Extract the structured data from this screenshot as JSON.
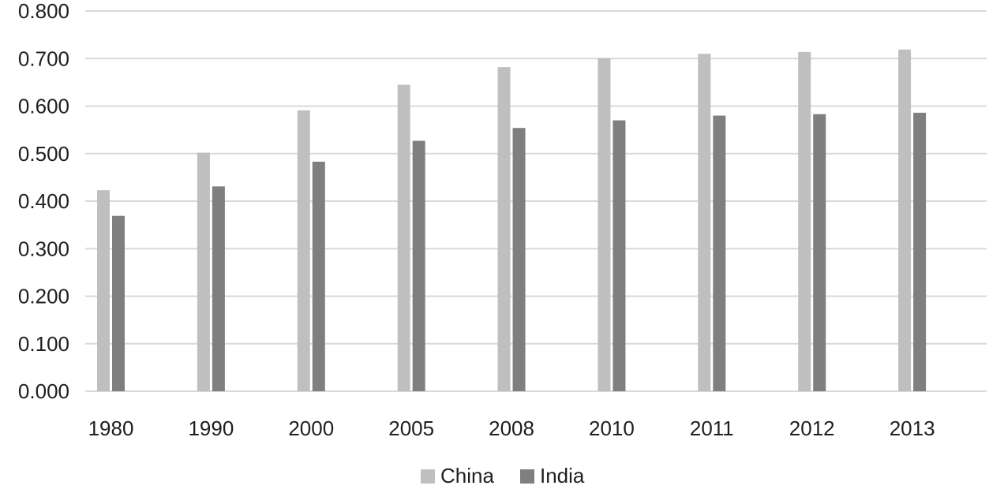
{
  "chart_data": {
    "type": "bar",
    "title": "",
    "xlabel": "",
    "ylabel": "",
    "categories": [
      "1980",
      "1990",
      "2000",
      "2005",
      "2008",
      "2010",
      "2011",
      "2012",
      "2013"
    ],
    "series": [
      {
        "name": "China",
        "color": "#bfbfbf",
        "values": [
          0.423,
          0.502,
          0.591,
          0.645,
          0.682,
          0.701,
          0.71,
          0.714,
          0.719
        ]
      },
      {
        "name": "India",
        "color": "#7f7f7f",
        "values": [
          0.369,
          0.431,
          0.483,
          0.527,
          0.554,
          0.57,
          0.58,
          0.583,
          0.586
        ]
      }
    ],
    "ylim": [
      0,
      0.8
    ],
    "yticks": [
      "0.000",
      "0.100",
      "0.200",
      "0.300",
      "0.400",
      "0.500",
      "0.600",
      "0.700",
      "0.800"
    ],
    "grid": true,
    "legend": "bottom-center"
  }
}
